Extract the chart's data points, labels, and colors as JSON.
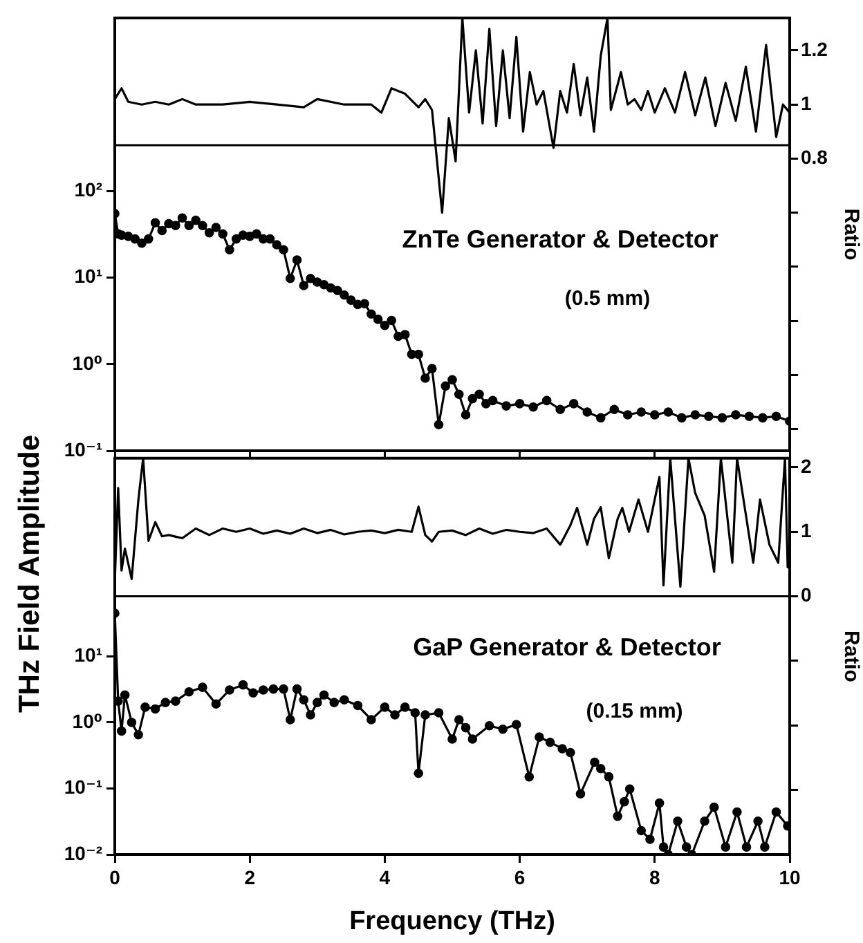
{
  "chart_data": [
    {
      "type": "line",
      "ylabel": "THz Field Amplitude",
      "y2label": "Ratio",
      "log": "y",
      "grid": false,
      "legend": false,
      "tick_labels": "y",
      "marker": "none",
      "line_style": "solid",
      "xlim": [
        0,
        10
      ],
      "xticks": [
        0,
        2,
        4,
        6,
        8,
        10
      ],
      "ylim": [
        0.1,
        10000
      ],
      "yticks": [
        {
          "value": 100,
          "label": "10²"
        },
        {
          "value": 10,
          "label": "10¹"
        },
        {
          "value": 1,
          "label": "10⁰"
        },
        {
          "value": 0.1,
          "label": "10⁻¹"
        }
      ],
      "y2lim": [
        -0.28,
        1.32
      ],
      "y2ticks": [
        1.2,
        1,
        0.8,
        {
          "value": 0.6,
          "label": null
        },
        {
          "value": 0.4,
          "label": null
        },
        {
          "value": 0.2,
          "label": null
        },
        {
          "value": 0,
          "label": null
        },
        {
          "value": -0.2,
          "label": null
        }
      ],
      "ref_lines": [
        {
          "axis": "y2",
          "value": 0.85,
          "label": null
        }
      ],
      "annotations": [
        "ZnTe Generator & Detector",
        "(0.5 mm)"
      ],
      "series": [
        {
          "color": "#000000",
          "marker": "circle",
          "x": [
            0,
            0.05,
            0.1,
            0.2,
            0.3,
            0.4,
            0.5,
            0.6,
            0.7,
            0.8,
            0.9,
            1.0,
            1.1,
            1.2,
            1.3,
            1.4,
            1.5,
            1.6,
            1.7,
            1.8,
            1.9,
            2.0,
            2.1,
            2.2,
            2.3,
            2.4,
            2.5,
            2.6,
            2.7,
            2.8,
            2.9,
            3.0,
            3.1,
            3.2,
            3.3,
            3.4,
            3.5,
            3.6,
            3.7,
            3.8,
            3.9,
            4.0,
            4.1,
            4.2,
            4.3,
            4.4,
            4.5,
            4.6,
            4.7,
            4.8,
            4.9,
            5.0,
            5.1,
            5.2,
            5.3,
            5.4,
            5.5,
            5.6,
            5.8,
            6.0,
            6.2,
            6.4,
            6.6,
            6.8,
            7.0,
            7.2,
            7.4,
            7.6,
            7.8,
            8.0,
            8.2,
            8.4,
            8.6,
            8.8,
            9.0,
            9.2,
            9.4,
            9.6,
            9.8,
            10.0
          ],
          "values": [
            55,
            32,
            31,
            30,
            28,
            25,
            28,
            43,
            35,
            42,
            40,
            49,
            40,
            46,
            40,
            33,
            38,
            32,
            21,
            28,
            31,
            30,
            32,
            28,
            28,
            24,
            21,
            9.8,
            16,
            8.1,
            9.8,
            8.9,
            8.3,
            7.6,
            7.1,
            6.3,
            5.5,
            4.9,
            5.0,
            3.8,
            3.3,
            2.8,
            3.2,
            2.1,
            2.2,
            1.3,
            1.3,
            0.69,
            0.89,
            0.2,
            0.56,
            0.66,
            0.45,
            0.26,
            0.4,
            0.45,
            0.35,
            0.38,
            0.33,
            0.35,
            0.32,
            0.38,
            0.3,
            0.35,
            0.28,
            0.24,
            0.3,
            0.26,
            0.28,
            0.26,
            0.28,
            0.24,
            0.26,
            0.25,
            0.24,
            0.26,
            0.25,
            0.24,
            0.25,
            0.22
          ]
        },
        {
          "color": "#000000",
          "axis": "y2",
          "x": [
            0,
            0.1,
            0.2,
            0.4,
            0.6,
            0.8,
            1.0,
            1.2,
            1.6,
            2.0,
            2.4,
            2.8,
            3.0,
            3.4,
            3.8,
            3.95,
            4.1,
            4.3,
            4.5,
            4.6,
            4.7,
            4.85,
            4.95,
            5.05,
            5.15,
            5.25,
            5.35,
            5.45,
            5.55,
            5.65,
            5.75,
            5.85,
            5.95,
            6.05,
            6.15,
            6.25,
            6.35,
            6.5,
            6.6,
            6.7,
            6.8,
            6.9,
            7.0,
            7.1,
            7.2,
            7.3,
            7.35,
            7.5,
            7.6,
            7.7,
            7.8,
            7.9,
            8.0,
            8.15,
            8.3,
            8.45,
            8.6,
            8.75,
            8.9,
            9.05,
            9.2,
            9.35,
            9.5,
            9.65,
            9.8,
            9.9,
            10.0
          ],
          "values": [
            1.02,
            1.06,
            1.01,
            1.0,
            1.01,
            1.0,
            1.02,
            1.0,
            1.0,
            1.01,
            1.0,
            0.99,
            1.02,
            1.0,
            1.0,
            0.97,
            1.06,
            1.04,
            0.99,
            1.02,
            0.98,
            0.6,
            0.95,
            0.79,
            1.32,
            0.97,
            1.2,
            0.93,
            1.28,
            0.92,
            1.2,
            0.95,
            1.25,
            0.9,
            1.12,
            1.0,
            1.05,
            0.84,
            1.05,
            0.97,
            1.15,
            0.96,
            1.1,
            0.9,
            1.18,
            1.32,
            0.98,
            1.12,
            1.0,
            1.02,
            0.98,
            1.05,
            0.97,
            1.06,
            0.97,
            1.12,
            0.96,
            1.1,
            0.92,
            1.08,
            0.94,
            1.14,
            0.9,
            1.22,
            0.88,
            1.0,
            0.97
          ]
        }
      ]
    },
    {
      "type": "line",
      "xlabel": "Frequency (THz)",
      "y2label": "Ratio",
      "log": "y",
      "grid": false,
      "legend": false,
      "marker": "none",
      "line_style": "solid",
      "xlim": [
        0,
        10
      ],
      "xticks": [
        0,
        2,
        4,
        6,
        8,
        10
      ],
      "ylim": [
        0.01,
        10000
      ],
      "yticks": [
        {
          "value": 10,
          "label": "10¹"
        },
        {
          "value": 1,
          "label": "10⁰"
        },
        {
          "value": 0.1,
          "label": "10⁻¹"
        },
        {
          "value": 0.01,
          "label": "10⁻²"
        }
      ],
      "y2lim": [
        -4,
        2.14
      ],
      "y2ticks": [
        2,
        1,
        0,
        {
          "value": -1,
          "label": null
        },
        {
          "value": -2,
          "label": null
        },
        {
          "value": -3,
          "label": null
        }
      ],
      "ref_lines": [
        {
          "axis": "y2",
          "value": 0,
          "label": null
        }
      ],
      "annotations": [
        "GaP Generator & Detector",
        "(0.15 mm)"
      ],
      "series": [
        {
          "color": "#000000",
          "marker": "circle",
          "x": [
            0,
            0.05,
            0.1,
            0.15,
            0.25,
            0.35,
            0.45,
            0.6,
            0.75,
            0.9,
            1.1,
            1.3,
            1.5,
            1.7,
            1.9,
            2.05,
            2.2,
            2.35,
            2.5,
            2.6,
            2.7,
            2.8,
            2.9,
            3.0,
            3.1,
            3.25,
            3.4,
            3.6,
            3.8,
            4.0,
            4.15,
            4.3,
            4.45,
            4.5,
            4.6,
            4.8,
            5.0,
            5.1,
            5.2,
            5.3,
            5.55,
            5.75,
            5.95,
            6.14,
            6.29,
            6.45,
            6.63,
            6.75,
            6.9,
            7.11,
            7.2,
            7.32,
            7.45,
            7.55,
            7.63,
            7.8,
            7.93,
            8.07,
            8.13,
            8.2,
            8.34,
            8.47,
            8.55,
            8.74,
            8.88,
            9.05,
            9.22,
            9.36,
            9.53,
            9.63,
            9.8,
            9.97
          ],
          "values": [
            45,
            2.1,
            0.74,
            2.6,
            1.0,
            0.65,
            1.7,
            1.6,
            2.0,
            2.1,
            2.9,
            3.4,
            1.9,
            3.1,
            3.7,
            2.8,
            3.1,
            3.2,
            3.2,
            1.1,
            3.2,
            2.2,
            1.3,
            2.0,
            2.6,
            2.0,
            2.2,
            1.8,
            1.1,
            1.7,
            1.3,
            1.7,
            1.4,
            0.17,
            1.3,
            1.4,
            0.56,
            1.1,
            0.83,
            0.56,
            0.89,
            0.79,
            0.93,
            0.15,
            0.6,
            0.5,
            0.4,
            0.35,
            0.083,
            0.25,
            0.2,
            0.15,
            0.038,
            0.063,
            0.098,
            0.023,
            0.017,
            0.06,
            0.013,
            0.01,
            0.032,
            0.013,
            0.01,
            0.032,
            0.052,
            0.013,
            0.044,
            0.013,
            0.032,
            0.013,
            0.044,
            0.027
          ]
        },
        {
          "color": "#000000",
          "axis": "y2",
          "x": [
            0,
            0.05,
            0.1,
            0.15,
            0.25,
            0.35,
            0.42,
            0.5,
            0.6,
            0.7,
            0.8,
            1.0,
            1.2,
            1.4,
            1.6,
            1.8,
            2.0,
            2.2,
            2.4,
            2.6,
            2.8,
            3.0,
            3.2,
            3.4,
            3.6,
            3.8,
            4.0,
            4.2,
            4.4,
            4.5,
            4.6,
            4.7,
            4.8,
            5.0,
            5.2,
            5.4,
            5.6,
            5.8,
            6.0,
            6.2,
            6.4,
            6.6,
            6.75,
            6.85,
            7.0,
            7.1,
            7.2,
            7.32,
            7.45,
            7.52,
            7.62,
            7.76,
            7.9,
            8.07,
            8.13,
            8.23,
            8.38,
            8.5,
            8.6,
            8.74,
            8.88,
            8.98,
            9.15,
            9.22,
            9.36,
            9.46,
            9.56,
            9.7,
            9.83,
            9.93,
            9.97
          ],
          "values": [
            0.23,
            1.68,
            0.4,
            0.74,
            0.27,
            1.5,
            2.14,
            0.86,
            1.15,
            0.93,
            0.95,
            0.9,
            1.05,
            0.95,
            1.05,
            1.0,
            1.05,
            0.97,
            1.02,
            0.97,
            1.05,
            0.98,
            1.03,
            0.96,
            1.0,
            1.02,
            0.98,
            1.03,
            1.0,
            1.39,
            0.95,
            0.85,
            1.0,
            1.02,
            0.95,
            1.05,
            0.97,
            1.03,
            1.0,
            0.98,
            1.05,
            0.8,
            1.1,
            1.37,
            0.8,
            1.2,
            1.38,
            0.59,
            1.2,
            1.37,
            1.0,
            1.5,
            1.0,
            1.85,
            0.17,
            2.14,
            0.15,
            2.14,
            1.6,
            1.25,
            0.38,
            2.14,
            0.52,
            2.14,
            1.2,
            0.52,
            1.5,
            0.8,
            0.52,
            2.14,
            0.45
          ]
        }
      ]
    }
  ]
}
